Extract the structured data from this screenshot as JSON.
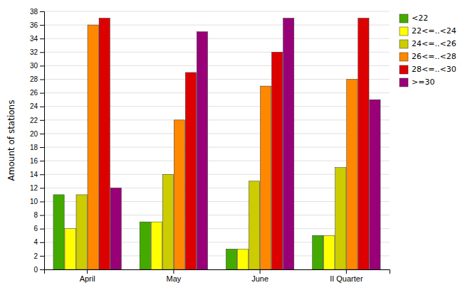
{
  "chart_data": {
    "type": "bar",
    "categories": [
      "April",
      "May",
      "June",
      "II Quarter"
    ],
    "series": [
      {
        "name": "<22",
        "color": "#44aa00",
        "values": [
          11,
          7,
          3,
          5
        ]
      },
      {
        "name": "22<=..<24",
        "color": "#ffff00",
        "values": [
          6,
          7,
          3,
          5
        ]
      },
      {
        "name": "24<=..<26",
        "color": "#cccc00",
        "values": [
          11,
          14,
          13,
          15
        ]
      },
      {
        "name": "26<=..<28",
        "color": "#ff8800",
        "values": [
          36,
          22,
          27,
          28
        ]
      },
      {
        "name": "28<=..<30",
        "color": "#dd0000",
        "values": [
          37,
          29,
          32,
          37
        ]
      },
      {
        "name": ">=30",
        "color": "#990077",
        "values": [
          12,
          35,
          37,
          25
        ]
      }
    ],
    "y_label": "Amount of stations",
    "ylim": [
      0,
      38
    ],
    "yticks": [
      0,
      2,
      4,
      6,
      8,
      10,
      12,
      14,
      16,
      18,
      20,
      22,
      24,
      26,
      28,
      30,
      32,
      34,
      36,
      38
    ],
    "grid": true,
    "legend": "top-right"
  }
}
